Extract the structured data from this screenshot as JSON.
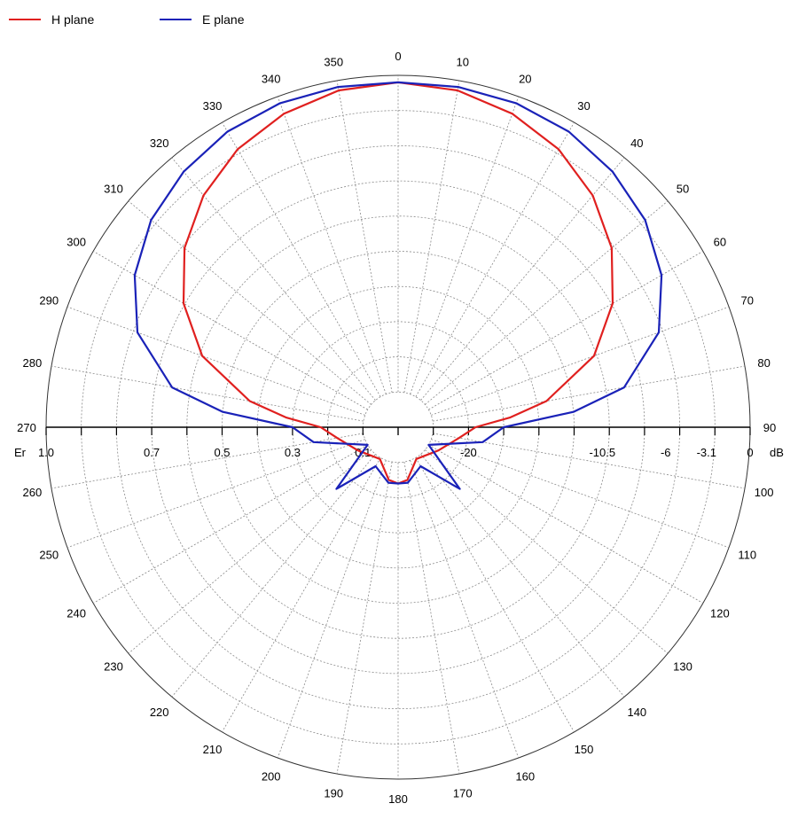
{
  "legend": {
    "h_plane": "H plane",
    "e_plane": "E plane"
  },
  "chart_data": {
    "type": "polar-line",
    "title": "",
    "angle_unit": "degrees",
    "angle_tick_step": 10,
    "angle_labels": [
      "0",
      "10",
      "20",
      "30",
      "40",
      "50",
      "60",
      "70",
      "80",
      "90",
      "100",
      "110",
      "120",
      "130",
      "140",
      "150",
      "160",
      "170",
      "180",
      "190",
      "200",
      "210",
      "220",
      "230",
      "240",
      "250",
      "260",
      "270",
      "280",
      "290",
      "300",
      "310",
      "320",
      "330",
      "340",
      "350"
    ],
    "radial_ticks_left": {
      "label": "Er",
      "values": [
        "1.0",
        "0.7",
        "0.5",
        "0.3",
        "0.1"
      ]
    },
    "radial_ticks_right": {
      "label": "dB",
      "values": [
        "-20",
        "-10.5",
        "-6",
        "-3.1",
        "0"
      ]
    },
    "radial_range_db": [
      -25,
      0
    ],
    "grid": true,
    "legend_position": "top-left",
    "series": [
      {
        "name": "H plane",
        "color": "#e0201f",
        "angles": [
          0,
          10,
          20,
          30,
          40,
          50,
          60,
          70,
          80,
          85,
          90,
          100,
          120,
          150,
          170,
          180,
          190,
          210,
          240,
          260,
          270,
          275,
          280,
          290,
          300,
          310,
          320,
          330,
          340,
          350
        ],
        "db": [
          -0.5,
          -0.7,
          -1.3,
          -2.2,
          -3.5,
          -5.2,
          -7.4,
          -10.2,
          -14.3,
          -17.0,
          -19.5,
          -20.6,
          -21.7,
          -22.4,
          -21.2,
          -21.0,
          -21.2,
          -22.4,
          -21.7,
          -20.6,
          -19.5,
          -17.0,
          -14.3,
          -10.2,
          -7.4,
          -5.2,
          -3.5,
          -2.2,
          -1.3,
          -0.7
        ]
      },
      {
        "name": "E plane",
        "color": "#1a22b8",
        "angles": [
          0,
          10,
          20,
          30,
          40,
          50,
          60,
          70,
          80,
          85,
          90,
          100,
          120,
          135,
          150,
          170,
          180,
          190,
          210,
          225,
          240,
          260,
          270,
          275,
          280,
          290,
          300,
          310,
          320,
          330,
          340,
          350
        ],
        "db": [
          -0.5,
          -0.45,
          -0.5,
          -0.75,
          -1.3,
          -2.1,
          -3.4,
          -5.3,
          -8.7,
          -12.5,
          -17.5,
          -18.9,
          -22.5,
          -18.8,
          -21.8,
          -21.0,
          -21.0,
          -21.0,
          -21.8,
          -18.8,
          -22.5,
          -18.9,
          -17.5,
          -12.5,
          -8.7,
          -5.3,
          -3.4,
          -2.1,
          -1.3,
          -0.75,
          -0.5,
          -0.45
        ]
      }
    ]
  }
}
